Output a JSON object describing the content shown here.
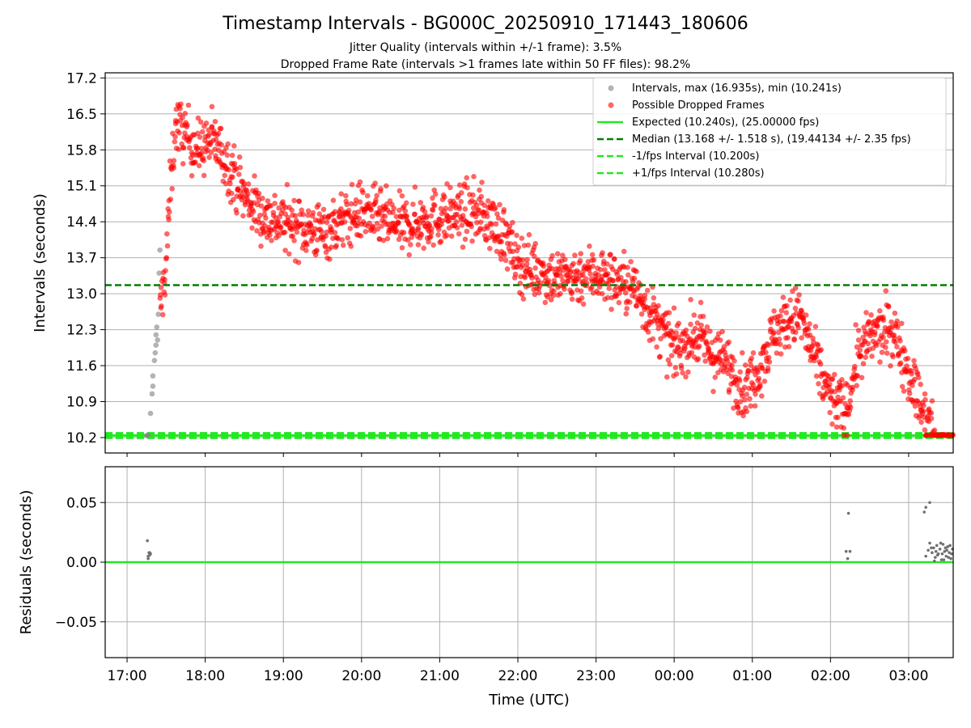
{
  "figure": {
    "title": "Timestamp Intervals - BG000C_20250910_171443_180606",
    "subtitle1": "Jitter Quality (intervals within +/-1 frame): 3.5%",
    "subtitle2": "Dropped Frame Rate (intervals >1 frames late within 50 FF files): 98.2%"
  },
  "colors": {
    "interval_gray": "#808080",
    "dropped_red": "#ff0000",
    "expected_green": "#22e822",
    "median_darkgreen": "#007f00",
    "fps_green": "#22e822",
    "grid": "#b0b0b0"
  },
  "chart_data": [
    {
      "type": "scatter",
      "ylabel": "Intervals (seconds)",
      "xlabel": "",
      "x_unit": "hours since 17:00 UTC",
      "xlim": [
        -0.28,
        10.57
      ],
      "ylim": [
        9.9,
        17.3
      ],
      "yticks": [
        "10.2",
        "10.9",
        "11.6",
        "12.3",
        "13.0",
        "13.7",
        "14.4",
        "15.1",
        "15.8",
        "16.5",
        "17.2"
      ],
      "grid": true,
      "legend_position": "top-right",
      "legend": [
        {
          "label": "Intervals, max (16.935s), min (10.241s)",
          "kind": "dot-gray"
        },
        {
          "label": "Possible Dropped Frames",
          "kind": "dot-red"
        },
        {
          "label": "Expected (10.240s), (25.00000 fps)",
          "kind": "line-expected"
        },
        {
          "label": "Median (13.168 +/- 1.518 s), (19.44134 +/- 2.35 fps)",
          "kind": "line-median"
        },
        {
          "label": "-1/fps Interval (10.200s)",
          "kind": "line-minus"
        },
        {
          "label": "+1/fps Interval (10.280s)",
          "kind": "line-plus"
        }
      ],
      "hlines": {
        "expected": 10.24,
        "median": 13.168,
        "minus_fps": 10.2,
        "plus_fps": 10.28
      },
      "stats": {
        "max": 16.935,
        "min": 10.241
      },
      "series": [
        {
          "name": "Intervals",
          "color": "#808080",
          "points": [
            [
              0.25,
              10.24
            ],
            [
              0.27,
              10.25
            ],
            [
              0.3,
              10.67
            ],
            [
              0.32,
              11.05
            ],
            [
              0.33,
              11.2
            ],
            [
              0.33,
              11.4
            ],
            [
              0.35,
              11.7
            ],
            [
              0.36,
              11.85
            ],
            [
              0.37,
              12.0
            ],
            [
              0.37,
              12.2
            ],
            [
              0.38,
              12.35
            ],
            [
              0.39,
              12.1
            ],
            [
              0.4,
              12.6
            ],
            [
              0.41,
              13.4
            ],
            [
              0.42,
              13.85
            ]
          ]
        },
        {
          "name": "Possible Dropped Frames",
          "color": "#ff0000",
          "trend": [
            [
              0.42,
              12.6
            ],
            [
              0.5,
              13.6
            ],
            [
              0.55,
              15.0
            ],
            [
              0.62,
              16.3
            ],
            [
              0.75,
              16.1
            ],
            [
              0.9,
              15.8
            ],
            [
              1.1,
              16.0
            ],
            [
              1.3,
              15.5
            ],
            [
              1.5,
              14.9
            ],
            [
              1.75,
              14.5
            ],
            [
              2.0,
              14.4
            ],
            [
              2.5,
              14.2
            ],
            [
              3.0,
              14.6
            ],
            [
              3.5,
              14.3
            ],
            [
              4.0,
              14.5
            ],
            [
              4.5,
              14.6
            ],
            [
              4.8,
              14.2
            ],
            [
              5.0,
              13.6
            ],
            [
              5.5,
              13.3
            ],
            [
              6.0,
              13.4
            ],
            [
              6.5,
              13.1
            ],
            [
              6.7,
              12.6
            ],
            [
              7.0,
              11.9
            ],
            [
              7.3,
              12.2
            ],
            [
              7.5,
              11.8
            ],
            [
              7.7,
              11.6
            ],
            [
              7.9,
              11.1
            ],
            [
              8.1,
              11.6
            ],
            [
              8.3,
              12.3
            ],
            [
              8.6,
              12.6
            ],
            [
              8.8,
              11.7
            ],
            [
              9.0,
              11.0
            ],
            [
              9.2,
              10.7
            ],
            [
              9.35,
              11.8
            ],
            [
              9.55,
              12.2
            ],
            [
              9.8,
              12.3
            ],
            [
              10.05,
              11.3
            ],
            [
              10.2,
              10.6
            ],
            [
              10.35,
              10.24
            ],
            [
              10.57,
              10.24
            ]
          ],
          "spread": 0.28,
          "count": 1800
        }
      ]
    },
    {
      "type": "scatter",
      "ylabel": "Residuals (seconds)",
      "xlabel": "Time (UTC)",
      "x_unit": "hours since 17:00 UTC",
      "xlim": [
        -0.28,
        10.57
      ],
      "ylim": [
        -0.08,
        0.08
      ],
      "yticks": [
        "−0.05",
        "0.00",
        "0.05"
      ],
      "xticks": [
        "17:00",
        "18:00",
        "19:00",
        "20:00",
        "21:00",
        "22:00",
        "23:00",
        "00:00",
        "01:00",
        "02:00",
        "03:00"
      ],
      "grid": true,
      "zero_line_color": "#22e822",
      "series": [
        {
          "name": "Residuals",
          "color": "#707070",
          "points": [
            [
              0.26,
              0.018
            ],
            [
              0.27,
              0.003
            ],
            [
              0.28,
              0.008
            ],
            [
              0.29,
              0.006
            ],
            [
              0.3,
              0.007
            ],
            [
              0.27,
              0.005
            ],
            [
              0.29,
              0.008
            ],
            [
              9.2,
              0.009
            ],
            [
              9.22,
              0.003
            ],
            [
              9.23,
              0.041
            ],
            [
              9.25,
              0.009
            ],
            [
              10.2,
              0.042
            ],
            [
              10.22,
              0.046
            ],
            [
              10.27,
              0.05
            ],
            [
              10.22,
              0.005
            ],
            [
              10.25,
              0.01
            ],
            [
              10.27,
              0.016
            ],
            [
              10.3,
              0.008
            ],
            [
              10.32,
              0.012
            ],
            [
              10.34,
              0.004
            ],
            [
              10.36,
              0.014
            ],
            [
              10.38,
              0.007
            ],
            [
              10.4,
              0.011
            ],
            [
              10.42,
              0.002
            ],
            [
              10.44,
              0.015
            ],
            [
              10.46,
              0.009
            ],
            [
              10.48,
              0.005
            ],
            [
              10.5,
              0.013
            ],
            [
              10.52,
              0.008
            ],
            [
              10.54,
              0.003
            ],
            [
              10.56,
              0.011
            ],
            [
              10.33,
              0.001
            ],
            [
              10.37,
              0.006
            ],
            [
              10.41,
              0.016
            ],
            [
              10.45,
              0.002
            ],
            [
              10.49,
              0.01
            ],
            [
              10.53,
              0.014
            ],
            [
              10.29,
              0.012
            ],
            [
              10.35,
              0.009
            ],
            [
              10.43,
              0.007
            ],
            [
              10.47,
              0.012
            ],
            [
              10.51,
              0.004
            ],
            [
              10.55,
              0.007
            ]
          ]
        }
      ]
    }
  ]
}
